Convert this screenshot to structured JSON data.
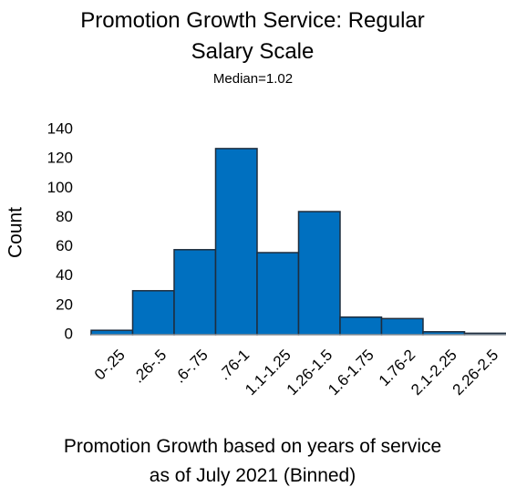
{
  "chart_data": {
    "type": "bar",
    "title": "Promotion Growth Service: Regular Salary Scale",
    "subtitle": "Median=1.02",
    "x_label": "Promotion Growth based on years of service as of July 2021 (Binned)",
    "y_label": "Count",
    "categories": [
      "0-.25",
      ".26-.5",
      ".6-.75",
      ".76-1",
      "1.1-1.25",
      "1.26-1.5",
      "1.6-1.75",
      "1.76-2",
      "2.1-2.25",
      "2.26-2.5"
    ],
    "values": [
      3,
      30,
      58,
      127,
      56,
      84,
      12,
      11,
      2,
      1
    ],
    "color": "#0070c0",
    "ylim": [
      0,
      140
    ],
    "yticks": [
      0,
      20,
      40,
      60,
      80,
      100,
      120,
      140
    ],
    "grid": false
  }
}
